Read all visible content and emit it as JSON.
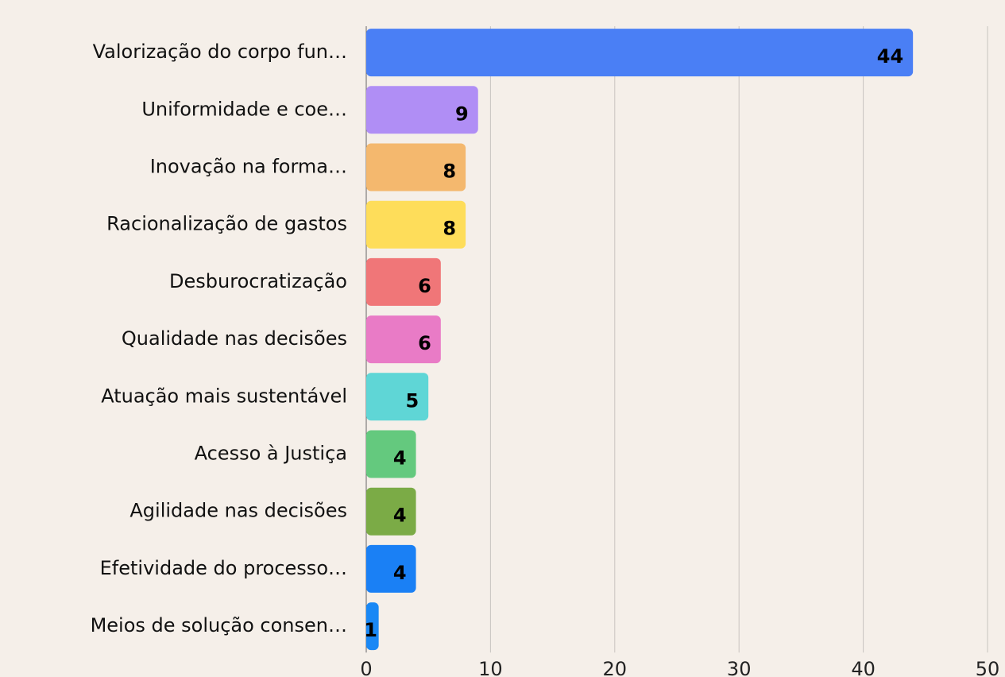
{
  "chart_data": {
    "type": "hbar",
    "categories": [
      "Valorização do corpo fun…",
      "Uniformidade e coe…",
      "Inovação na forma…",
      "Racionalização de gastos",
      "Desburocratização",
      "Qualidade nas decisões",
      "Atuação mais sustentável",
      "Acesso à Justiça",
      "Agilidade nas decisões",
      "Efetividade do processo…",
      "Meios de solução consen…"
    ],
    "values": [
      44,
      9,
      8,
      8,
      6,
      6,
      5,
      4,
      4,
      4,
      1
    ],
    "colors": [
      "#4a7ff5",
      "#b08ef5",
      "#f4b86e",
      "#fedd5a",
      "#f07678",
      "#e97bc6",
      "#5fd6d6",
      "#64c97e",
      "#7bab46",
      "#1a80f5",
      "#1a88f5"
    ],
    "xlim": [
      0,
      50
    ],
    "xticks": [
      0,
      10,
      20,
      30,
      40,
      50
    ],
    "grid": true
  }
}
